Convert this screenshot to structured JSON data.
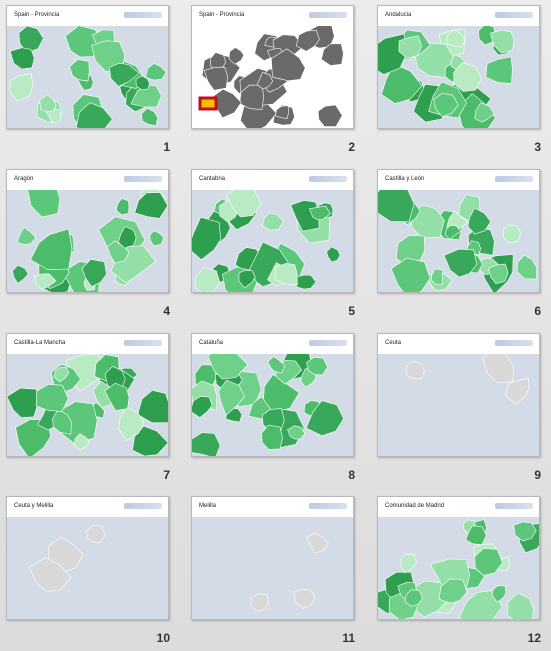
{
  "slides": [
    {
      "title": "Spain - Provincia",
      "number": 1
    },
    {
      "title": "Spain - Provincia",
      "number": 2
    },
    {
      "title": "Andalucia",
      "number": 3
    },
    {
      "title": "Aragón",
      "number": 4
    },
    {
      "title": "Cantabria",
      "number": 5
    },
    {
      "title": "Castilla y León",
      "number": 6
    },
    {
      "title": "Castilla-La Mancha",
      "number": 7
    },
    {
      "title": "Cataluña",
      "number": 8
    },
    {
      "title": "Ceuta",
      "number": 9
    },
    {
      "title": "Ceuta y Melilla",
      "number": 10
    },
    {
      "title": "Melilla",
      "number": 11
    },
    {
      "title": "Comunidad de Madrid",
      "number": 12
    }
  ]
}
